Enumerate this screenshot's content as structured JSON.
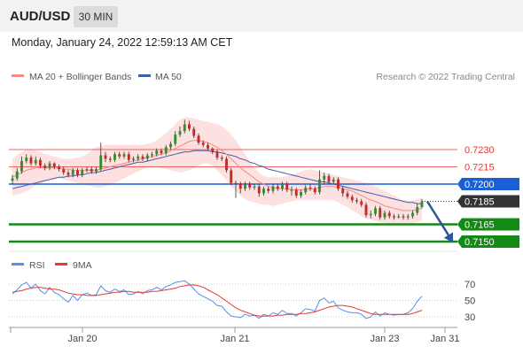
{
  "header": {
    "symbol": "AUD/USD",
    "timeframe": "30 MIN"
  },
  "datetime": "Monday, January 24, 2022 12:59:13 AM CET",
  "credit": "Research © 2022 Trading Central",
  "colors": {
    "bull": "#2f8f2f",
    "bear": "#c62828",
    "ma20": "#f28b82",
    "ma50": "#3f5fa8",
    "band_fill": "#fde0e0",
    "resistance": "#e53935",
    "pivot": "#1a5fd6",
    "support": "#138a13",
    "arrow": "#2b579a",
    "rsi": "#5b8ee6",
    "rsi_ma": "#e53935"
  },
  "chart_data": [
    {
      "type": "candlestick",
      "legend": [
        {
          "name": "MA 20 + Bollinger Bands",
          "color": "#f28b82"
        },
        {
          "name": "MA 50",
          "color": "#3f5fa8"
        }
      ],
      "ylim": [
        0.714,
        0.724
      ],
      "levels": [
        {
          "value": 0.723,
          "label": "0.7230",
          "kind": "resistance"
        },
        {
          "value": 0.7215,
          "label": "0.7215",
          "kind": "resistance"
        },
        {
          "value": 0.72,
          "label": "0.7200",
          "kind": "pivot"
        },
        {
          "value": 0.7185,
          "label": "0.7185",
          "kind": "last"
        },
        {
          "value": 0.7165,
          "label": "0.7165",
          "kind": "support"
        },
        {
          "value": 0.715,
          "label": "0.7150",
          "kind": "support"
        }
      ],
      "close": [
        0.7205,
        0.7211,
        0.722,
        0.7223,
        0.7218,
        0.7221,
        0.7216,
        0.7214,
        0.7218,
        0.7215,
        0.7213,
        0.721,
        0.7208,
        0.7212,
        0.7208,
        0.7212,
        0.7213,
        0.7211,
        0.7213,
        0.7225,
        0.7222,
        0.7221,
        0.7226,
        0.7224,
        0.7226,
        0.7221,
        0.7222,
        0.7224,
        0.7222,
        0.7225,
        0.7226,
        0.7229,
        0.7227,
        0.7232,
        0.7235,
        0.7243,
        0.7246,
        0.7252,
        0.7248,
        0.7242,
        0.7236,
        0.7234,
        0.7231,
        0.7228,
        0.7223,
        0.7222,
        0.7212,
        0.7201,
        0.72,
        0.7196,
        0.72,
        0.7197,
        0.7198,
        0.7192,
        0.7196,
        0.7194,
        0.7198,
        0.7196,
        0.72,
        0.7195,
        0.7195,
        0.719,
        0.7193,
        0.7197,
        0.7196,
        0.7193,
        0.7204,
        0.7207,
        0.7202,
        0.7204,
        0.7196,
        0.7192,
        0.7189,
        0.7186,
        0.7185,
        0.7182,
        0.7173,
        0.7174,
        0.7179,
        0.7171,
        0.7175,
        0.7172,
        0.7171,
        0.7172,
        0.7171,
        0.7172,
        0.7175,
        0.718,
        0.7185
      ],
      "open": [
        0.7203,
        0.7205,
        0.7211,
        0.722,
        0.7223,
        0.7218,
        0.7221,
        0.7216,
        0.7214,
        0.7218,
        0.7215,
        0.7213,
        0.721,
        0.7208,
        0.7212,
        0.7208,
        0.7212,
        0.7213,
        0.7211,
        0.7213,
        0.7225,
        0.7222,
        0.7221,
        0.7226,
        0.7224,
        0.7226,
        0.7221,
        0.7222,
        0.7224,
        0.7222,
        0.7225,
        0.7226,
        0.7229,
        0.7227,
        0.7232,
        0.7235,
        0.7243,
        0.7246,
        0.7252,
        0.7248,
        0.7242,
        0.7236,
        0.7234,
        0.7231,
        0.7228,
        0.7223,
        0.7222,
        0.7212,
        0.7201,
        0.72,
        0.7196,
        0.72,
        0.7197,
        0.7198,
        0.7192,
        0.7196,
        0.7194,
        0.7198,
        0.7196,
        0.72,
        0.7195,
        0.7195,
        0.719,
        0.7193,
        0.7197,
        0.7196,
        0.7193,
        0.7204,
        0.7207,
        0.7202,
        0.7204,
        0.7196,
        0.7192,
        0.7189,
        0.7186,
        0.7185,
        0.7182,
        0.7173,
        0.7174,
        0.7179,
        0.7171,
        0.7175,
        0.7172,
        0.7171,
        0.7172,
        0.7171,
        0.7172,
        0.7175,
        0.718
      ],
      "high": [
        0.7208,
        0.7214,
        0.7224,
        0.7226,
        0.7225,
        0.7224,
        0.7223,
        0.7218,
        0.722,
        0.7219,
        0.7217,
        0.7215,
        0.7212,
        0.7214,
        0.7214,
        0.7214,
        0.7215,
        0.7215,
        0.7215,
        0.7236,
        0.7228,
        0.7224,
        0.7228,
        0.7228,
        0.7228,
        0.7228,
        0.7224,
        0.7226,
        0.7226,
        0.7227,
        0.7228,
        0.7231,
        0.7231,
        0.7234,
        0.7237,
        0.7246,
        0.725,
        0.7256,
        0.7255,
        0.725,
        0.7244,
        0.7238,
        0.7236,
        0.7232,
        0.723,
        0.7225,
        0.7224,
        0.7214,
        0.7203,
        0.7202,
        0.7202,
        0.7202,
        0.72,
        0.72,
        0.7198,
        0.7198,
        0.72,
        0.72,
        0.7202,
        0.7202,
        0.7198,
        0.7197,
        0.7195,
        0.7199,
        0.72,
        0.7198,
        0.7212,
        0.721,
        0.7209,
        0.7206,
        0.7206,
        0.7198,
        0.7194,
        0.7191,
        0.7188,
        0.7187,
        0.7184,
        0.7177,
        0.7181,
        0.7181,
        0.7177,
        0.7177,
        0.7174,
        0.7174,
        0.7174,
        0.7174,
        0.7177,
        0.7183,
        0.7187
      ],
      "low": [
        0.72,
        0.7203,
        0.7209,
        0.7218,
        0.7216,
        0.7216,
        0.7214,
        0.7212,
        0.7212,
        0.7213,
        0.7211,
        0.7208,
        0.7206,
        0.7206,
        0.7206,
        0.7206,
        0.721,
        0.7209,
        0.7209,
        0.7211,
        0.7219,
        0.7219,
        0.7219,
        0.7222,
        0.7222,
        0.7219,
        0.7219,
        0.722,
        0.722,
        0.722,
        0.7223,
        0.7224,
        0.7225,
        0.7225,
        0.723,
        0.7233,
        0.7241,
        0.7244,
        0.7246,
        0.724,
        0.7234,
        0.7232,
        0.7229,
        0.7226,
        0.7221,
        0.722,
        0.721,
        0.7199,
        0.7188,
        0.7192,
        0.7194,
        0.7195,
        0.7195,
        0.7189,
        0.719,
        0.7192,
        0.7192,
        0.7194,
        0.7194,
        0.7193,
        0.719,
        0.7188,
        0.7188,
        0.7191,
        0.7194,
        0.7191,
        0.7191,
        0.72,
        0.72,
        0.72,
        0.7194,
        0.7189,
        0.7187,
        0.7184,
        0.7183,
        0.718,
        0.7171,
        0.717,
        0.7172,
        0.7169,
        0.7169,
        0.717,
        0.7169,
        0.717,
        0.7169,
        0.7169,
        0.717,
        0.7173,
        0.7179
      ],
      "ma20": [
        0.7206,
        0.7208,
        0.721,
        0.7212,
        0.7213,
        0.7214,
        0.7214,
        0.7214,
        0.7214,
        0.7214,
        0.7214,
        0.7213,
        0.7213,
        0.7212,
        0.7212,
        0.7212,
        0.7212,
        0.7212,
        0.7212,
        0.7213,
        0.7214,
        0.7215,
        0.7216,
        0.7217,
        0.7218,
        0.7219,
        0.722,
        0.7221,
        0.7222,
        0.7223,
        0.7224,
        0.7225,
        0.7226,
        0.7227,
        0.7229,
        0.7231,
        0.7233,
        0.7235,
        0.7237,
        0.7238,
        0.7238,
        0.7237,
        0.7236,
        0.7234,
        0.7232,
        0.7229,
        0.7226,
        0.7222,
        0.7218,
        0.7214,
        0.7211,
        0.7208,
        0.7205,
        0.7202,
        0.72,
        0.7198,
        0.7197,
        0.7196,
        0.7196,
        0.7196,
        0.7195,
        0.7195,
        0.7195,
        0.7195,
        0.7196,
        0.7196,
        0.7197,
        0.7198,
        0.7198,
        0.7198,
        0.7197,
        0.7196,
        0.7195,
        0.7194,
        0.7192,
        0.719,
        0.7188,
        0.7186,
        0.7185,
        0.7183,
        0.7181,
        0.718,
        0.7179,
        0.7178,
        0.7177,
        0.7177,
        0.7177,
        0.7178,
        0.7179
      ],
      "bb_upper": [
        0.7222,
        0.7225,
        0.7228,
        0.723,
        0.723,
        0.7229,
        0.7228,
        0.7226,
        0.7225,
        0.7224,
        0.7223,
        0.7222,
        0.7222,
        0.7222,
        0.7223,
        0.7224,
        0.7226,
        0.7229,
        0.7232,
        0.7233,
        0.7234,
        0.7234,
        0.7234,
        0.7234,
        0.7234,
        0.7234,
        0.7234,
        0.7234,
        0.7234,
        0.7235,
        0.7236,
        0.7238,
        0.7241,
        0.7244,
        0.7248,
        0.7252,
        0.7256,
        0.7258,
        0.7258,
        0.7257,
        0.7256,
        0.7255,
        0.7254,
        0.7253,
        0.7252,
        0.725,
        0.7247,
        0.7243,
        0.7238,
        0.7232,
        0.7226,
        0.722,
        0.7214,
        0.721,
        0.7207,
        0.7206,
        0.7206,
        0.7206,
        0.7206,
        0.7207,
        0.7208,
        0.7209,
        0.7211,
        0.7212,
        0.7213,
        0.7212,
        0.7211,
        0.721,
        0.7209,
        0.7208,
        0.7207,
        0.7206,
        0.7205,
        0.7204,
        0.7203,
        0.7202,
        0.7201,
        0.72,
        0.7198,
        0.7196,
        0.7194,
        0.7192,
        0.719,
        0.7188,
        0.7186,
        0.7186,
        0.7186,
        0.7187,
        0.7188
      ],
      "bb_lower": [
        0.719,
        0.7191,
        0.7192,
        0.7194,
        0.7196,
        0.7199,
        0.72,
        0.7202,
        0.7203,
        0.7204,
        0.7205,
        0.7204,
        0.7203,
        0.7202,
        0.7201,
        0.72,
        0.7199,
        0.7198,
        0.7197,
        0.7197,
        0.7198,
        0.7199,
        0.7201,
        0.7203,
        0.7205,
        0.7207,
        0.7209,
        0.7211,
        0.7213,
        0.7214,
        0.7215,
        0.7215,
        0.7214,
        0.7213,
        0.7212,
        0.7211,
        0.721,
        0.7211,
        0.7212,
        0.7214,
        0.7216,
        0.7218,
        0.7218,
        0.7216,
        0.7212,
        0.7208,
        0.7203,
        0.7198,
        0.7194,
        0.719,
        0.7187,
        0.7185,
        0.7184,
        0.7183,
        0.7182,
        0.7182,
        0.7181,
        0.7182,
        0.7183,
        0.7184,
        0.7185,
        0.7186,
        0.7186,
        0.7186,
        0.7186,
        0.7186,
        0.7186,
        0.7186,
        0.7186,
        0.7186,
        0.7184,
        0.7182,
        0.718,
        0.7177,
        0.7175,
        0.7172,
        0.717,
        0.7169,
        0.7168,
        0.7167,
        0.7166,
        0.7166,
        0.7166,
        0.7166,
        0.7166,
        0.7166,
        0.7166,
        0.7167,
        0.7168
      ],
      "ma50": [
        0.7196,
        0.7197,
        0.7198,
        0.7199,
        0.72,
        0.7201,
        0.7202,
        0.7203,
        0.7204,
        0.7205,
        0.7206,
        0.7206,
        0.7207,
        0.7207,
        0.7208,
        0.7208,
        0.7209,
        0.721,
        0.721,
        0.7211,
        0.7212,
        0.7213,
        0.7214,
        0.7215,
        0.7216,
        0.7217,
        0.7218,
        0.7219,
        0.7219,
        0.722,
        0.7221,
        0.7222,
        0.7223,
        0.7224,
        0.7225,
        0.7226,
        0.7227,
        0.7228,
        0.7228,
        0.7229,
        0.7229,
        0.7229,
        0.7229,
        0.7228,
        0.7228,
        0.7227,
        0.7226,
        0.7225,
        0.7224,
        0.7222,
        0.7221,
        0.7219,
        0.7218,
        0.7216,
        0.7215,
        0.7213,
        0.7212,
        0.7211,
        0.721,
        0.7209,
        0.7208,
        0.7207,
        0.7206,
        0.7205,
        0.7204,
        0.7203,
        0.7202,
        0.7202,
        0.7201,
        0.72,
        0.7199,
        0.7198,
        0.7197,
        0.7196,
        0.7195,
        0.7194,
        0.7193,
        0.7192,
        0.7191,
        0.719,
        0.7189,
        0.7188,
        0.7187,
        0.7186,
        0.7185,
        0.7184,
        0.7184,
        0.7183,
        0.7183
      ],
      "projection": {
        "from": 0.7185,
        "to": 0.715
      }
    },
    {
      "type": "line",
      "legend": [
        {
          "name": "RSI",
          "color": "#5b8ee6"
        },
        {
          "name": "9MA",
          "color": "#e53935"
        }
      ],
      "ylim": [
        20,
        80
      ],
      "yticks": [
        70,
        50,
        30
      ],
      "xticks": [
        "Jan 20",
        "Jan 21",
        "Jan 23",
        "Jan 31"
      ],
      "rsi": [
        58,
        63,
        69,
        72,
        65,
        70,
        62,
        58,
        66,
        60,
        57,
        52,
        48,
        56,
        50,
        57,
        59,
        56,
        57,
        68,
        62,
        60,
        64,
        61,
        63,
        57,
        58,
        61,
        58,
        62,
        63,
        66,
        63,
        67,
        69,
        72,
        73,
        74,
        70,
        64,
        58,
        55,
        52,
        49,
        44,
        43,
        36,
        31,
        30,
        29,
        33,
        31,
        32,
        28,
        33,
        31,
        35,
        33,
        38,
        34,
        34,
        31,
        35,
        40,
        39,
        37,
        50,
        53,
        47,
        49,
        41,
        38,
        36,
        35,
        35,
        33,
        28,
        30,
        36,
        31,
        35,
        33,
        32,
        33,
        33,
        35,
        40,
        49,
        55
      ],
      "rsi_ma": [
        60,
        61,
        62,
        64,
        65,
        66,
        66,
        65,
        64,
        64,
        63,
        61,
        59,
        58,
        57,
        57,
        56,
        56,
        56,
        57,
        58,
        59,
        60,
        60,
        61,
        61,
        60,
        60,
        60,
        60,
        61,
        61,
        62,
        63,
        64,
        65,
        67,
        68,
        69,
        69,
        68,
        66,
        63,
        60,
        57,
        53,
        49,
        45,
        41,
        38,
        36,
        34,
        32,
        31,
        31,
        31,
        31,
        32,
        32,
        33,
        33,
        33,
        34,
        34,
        35,
        36,
        38,
        40,
        42,
        43,
        44,
        44,
        43,
        42,
        40,
        38,
        36,
        34,
        33,
        33,
        33,
        33,
        33,
        33,
        33,
        33,
        34,
        36,
        38
      ]
    }
  ]
}
